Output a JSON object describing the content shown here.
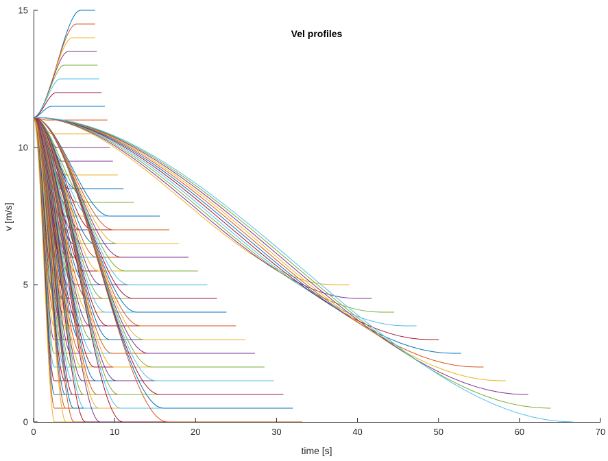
{
  "chart_data": {
    "type": "line",
    "title": "Vel profiles",
    "xlabel": "time [s]",
    "ylabel": "v [m/s]",
    "xlim": [
      0,
      70
    ],
    "ylim": [
      0,
      15
    ],
    "xticks": [
      0,
      10,
      20,
      30,
      40,
      50,
      60,
      70
    ],
    "yticks": [
      0,
      5,
      10,
      15
    ],
    "grid": false,
    "legend": "none",
    "initial_velocity": 11.1,
    "color_cycle": [
      "#0072BD",
      "#D95319",
      "#EDB120",
      "#7E2F8E",
      "#77AC30",
      "#4DBEEE",
      "#A2142F"
    ],
    "series": [
      {
        "type": "accel",
        "target_v": 15.0,
        "reach_t": 5.8,
        "end_t": 7.6
      },
      {
        "type": "accel",
        "target_v": 14.5,
        "reach_t": 5.3,
        "end_t": 7.6
      },
      {
        "type": "accel",
        "target_v": 14.0,
        "reach_t": 4.8,
        "end_t": 7.6
      },
      {
        "type": "accel",
        "target_v": 13.5,
        "reach_t": 4.3,
        "end_t": 7.8
      },
      {
        "type": "accel",
        "target_v": 13.0,
        "reach_t": 3.8,
        "end_t": 7.9
      },
      {
        "type": "accel",
        "target_v": 12.5,
        "reach_t": 3.3,
        "end_t": 8.1
      },
      {
        "type": "accel",
        "target_v": 12.0,
        "reach_t": 2.8,
        "end_t": 8.4
      },
      {
        "type": "accel",
        "target_v": 11.5,
        "reach_t": 2.2,
        "end_t": 8.8
      },
      {
        "type": "accel",
        "target_v": 11.0,
        "reach_t": 1.6,
        "end_t": 9.1
      },
      {
        "type": "decel_family",
        "final_v_from": 10.5,
        "final_v_to": 0.0,
        "step": 0.5,
        "reach_t_min": 2.3,
        "reach_t_max": 2.6,
        "end_t_min": 9.1,
        "end_t_max": 9.6
      },
      {
        "type": "decel_family",
        "final_v_from": 10.0,
        "final_v_to": 0.0,
        "step": 0.5,
        "reach_t_min": 3.0,
        "reach_t_max": 4.0,
        "end_t_min": 9.4,
        "end_t_max": 10.8
      },
      {
        "type": "decel_family",
        "final_v_from": 9.5,
        "final_v_to": 0.0,
        "step": 0.5,
        "reach_t_min": 3.6,
        "reach_t_max": 5.0,
        "end_t_min": 9.8,
        "end_t_max": 12.0
      },
      {
        "type": "decel_family",
        "final_v_from": 9.0,
        "final_v_to": 0.0,
        "step": 0.5,
        "reach_t_min": 4.3,
        "reach_t_max": 6.4,
        "end_t_min": 10.4,
        "end_t_max": 13.4
      },
      {
        "type": "decel_family",
        "final_v_from": 8.5,
        "final_v_to": 0.0,
        "step": 0.5,
        "reach_t_min": 5.2,
        "reach_t_max": 8.2,
        "end_t_min": 11.1,
        "end_t_max": 16.6
      },
      {
        "type": "decel_family",
        "final_v_from": 8.0,
        "final_v_to": 0.0,
        "step": 0.5,
        "reach_t_min": 6.7,
        "reach_t_max": 11.0,
        "end_t_min": 12.4,
        "end_t_max": 22.1
      },
      {
        "type": "decel_family",
        "final_v_from": 7.5,
        "final_v_to": 0.0,
        "step": 0.5,
        "reach_t_min": 9.4,
        "reach_t_max": 16.5,
        "end_t_min": 15.6,
        "end_t_max": 33.2
      },
      {
        "type": "decel_family",
        "final_v_from": 5.0,
        "final_v_to": 0.0,
        "step": 0.5,
        "reach_t_min": 37.0,
        "reach_t_max": 66.6,
        "end_t_min": 39.0,
        "end_t_max": 66.6
      }
    ]
  }
}
